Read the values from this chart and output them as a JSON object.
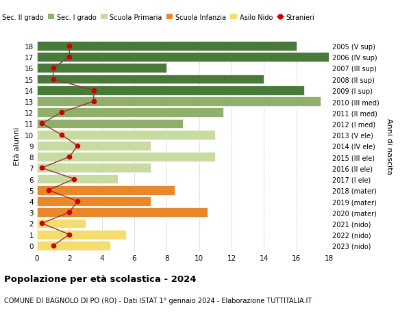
{
  "ages": [
    0,
    1,
    2,
    3,
    4,
    5,
    6,
    7,
    8,
    9,
    10,
    11,
    12,
    13,
    14,
    15,
    16,
    17,
    18
  ],
  "years": [
    "2023 (nido)",
    "2022 (nido)",
    "2021 (nido)",
    "2020 (mater)",
    "2019 (mater)",
    "2018 (mater)",
    "2017 (I ele)",
    "2016 (II ele)",
    "2015 (III ele)",
    "2014 (IV ele)",
    "2013 (V ele)",
    "2012 (I med)",
    "2011 (II med)",
    "2010 (III med)",
    "2009 (I sup)",
    "2008 (II sup)",
    "2007 (III sup)",
    "2006 (IV sup)",
    "2005 (V sup)"
  ],
  "bar_values": [
    4.5,
    5.5,
    3.0,
    10.5,
    7.0,
    8.5,
    5.0,
    7.0,
    11.0,
    7.0,
    11.0,
    9.0,
    11.5,
    17.5,
    16.5,
    14.0,
    8.0,
    18.5,
    16.0
  ],
  "bar_colors": [
    "#f5dc6e",
    "#f5dc6e",
    "#f5dc6e",
    "#e8882a",
    "#e8882a",
    "#e8882a",
    "#c8dba0",
    "#c8dba0",
    "#c8dba0",
    "#c8dba0",
    "#c8dba0",
    "#8faf6a",
    "#8faf6a",
    "#8faf6a",
    "#4a7a3a",
    "#4a7a3a",
    "#4a7a3a",
    "#4a7a3a",
    "#4a7a3a"
  ],
  "stranieri_values": [
    1.0,
    2.0,
    0.3,
    2.0,
    2.5,
    0.7,
    2.3,
    0.3,
    2.0,
    2.5,
    1.5,
    0.3,
    1.5,
    3.5,
    3.5,
    1.0,
    1.0,
    2.0,
    2.0
  ],
  "legend_labels": [
    "Sec. II grado",
    "Sec. I grado",
    "Scuola Primaria",
    "Scuola Infanzia",
    "Asilo Nido",
    "Stranieri"
  ],
  "legend_colors": [
    "#4a7a3a",
    "#8faf6a",
    "#c8dba0",
    "#e8882a",
    "#f5dc6e",
    "#cc0000"
  ],
  "ylabel_left": "Età alunni",
  "ylabel_right": "Anni di nascita",
  "title": "Popolazione per età scolastica - 2024",
  "subtitle": "COMUNE DI BAGNOLO DI PO (RO) - Dati ISTAT 1° gennaio 2024 - Elaborazione TUTTITALIA.IT",
  "xlim": [
    0,
    18
  ],
  "bar_height": 0.85,
  "grid_color": "#cccccc",
  "bg_color": "#ffffff",
  "stranieri_color": "#cc0000",
  "stranieri_line_color": "#993333"
}
